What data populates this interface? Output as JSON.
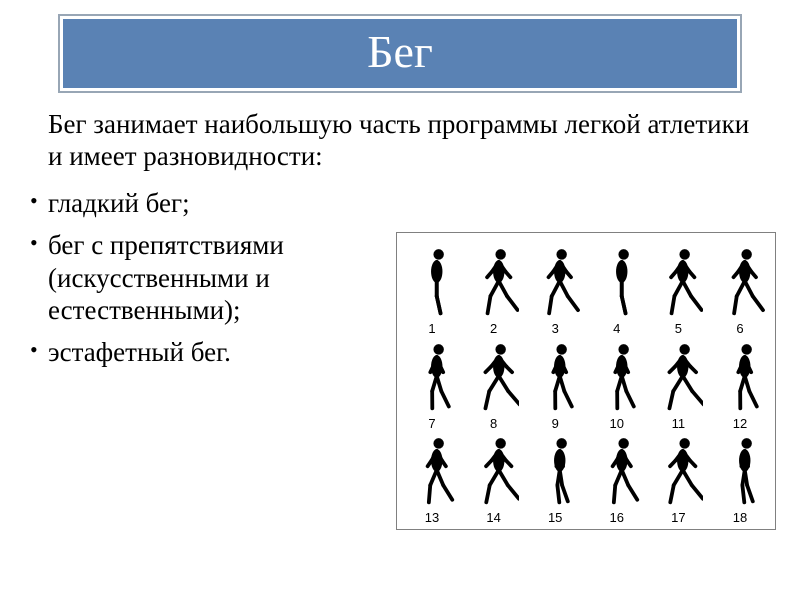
{
  "title": "Бег",
  "intro": "Бег занимает наибольшую часть программы легкой атлетики и имеет разновидности:",
  "bullets": [
    "гладкий бег;",
    "бег с препятствиями (искусственными и естественными);",
    "эстафетный бег."
  ],
  "figure": {
    "rows": 3,
    "cols": 6,
    "numbers": [
      [
        "1",
        "2",
        "3",
        "4",
        "5",
        "6"
      ],
      [
        "7",
        "8",
        "9",
        "10",
        "11",
        "12"
      ],
      [
        "13",
        "14",
        "15",
        "16",
        "17",
        "18"
      ]
    ],
    "runner_color": "#000000",
    "background_color": "#ffffff",
    "border_color": "#808080",
    "number_fontsize": 13,
    "phase_offsets": [
      [
        0,
        0.17,
        0.34,
        0.5,
        0.67,
        0.84
      ],
      [
        0.08,
        0.25,
        0.42,
        0.58,
        0.75,
        0.92
      ],
      [
        0.12,
        0.3,
        0.46,
        0.62,
        0.8,
        0.96
      ]
    ]
  },
  "colors": {
    "title_bg": "#5a82b4",
    "title_text": "#ffffff",
    "title_inner_border": "#ffffff",
    "title_outer_border": "#98a6b5",
    "body_text": "#000000",
    "page_bg": "#ffffff"
  },
  "typography": {
    "title_fontsize": 46,
    "body_fontsize": 27,
    "title_font": "Times New Roman",
    "body_font": "Times New Roman"
  }
}
